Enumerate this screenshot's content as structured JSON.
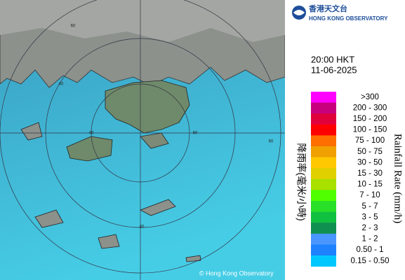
{
  "header": {
    "org_name_zh": "香港天文台",
    "org_name_en": "HONG KONG OBSERVATORY"
  },
  "time": "20:00 HKT",
  "date": "11-06-2025",
  "legend": {
    "title_zh": "降雨率(毫米/小時)",
    "title_en": "Rainfall Rate (mm/h)",
    "bins": [
      {
        "label": ">300",
        "color": "#ff00ff"
      },
      {
        "label": "200 - 300",
        "color": "#c8007d"
      },
      {
        "label": "150 - 200",
        "color": "#e0003c"
      },
      {
        "label": "100 - 150",
        "color": "#ff0000"
      },
      {
        "label": "75 - 100",
        "color": "#ff6e00"
      },
      {
        "label": "50 - 75",
        "color": "#f0a000"
      },
      {
        "label": "30 - 50",
        "color": "#ffc800"
      },
      {
        "label": "15 - 30",
        "color": "#e0d000"
      },
      {
        "label": "10 - 15",
        "color": "#a8e000"
      },
      {
        "label": "7 - 10",
        "color": "#50ff00"
      },
      {
        "label": "5 - 7",
        "color": "#28e028"
      },
      {
        "label": "3 - 5",
        "color": "#10c040"
      },
      {
        "label": "2 - 3",
        "color": "#109050"
      },
      {
        "label": "1 - 2",
        "color": "#4a96ff"
      },
      {
        "label": "0.50 - 1",
        "color": "#1e82ff"
      },
      {
        "label": "0.15 - 0.50",
        "color": "#00c8ff"
      }
    ]
  },
  "map": {
    "ring_labels": [
      "60",
      "40",
      "60",
      "40",
      "60",
      "40"
    ]
  },
  "copyright": "© Hong Kong Observatory"
}
